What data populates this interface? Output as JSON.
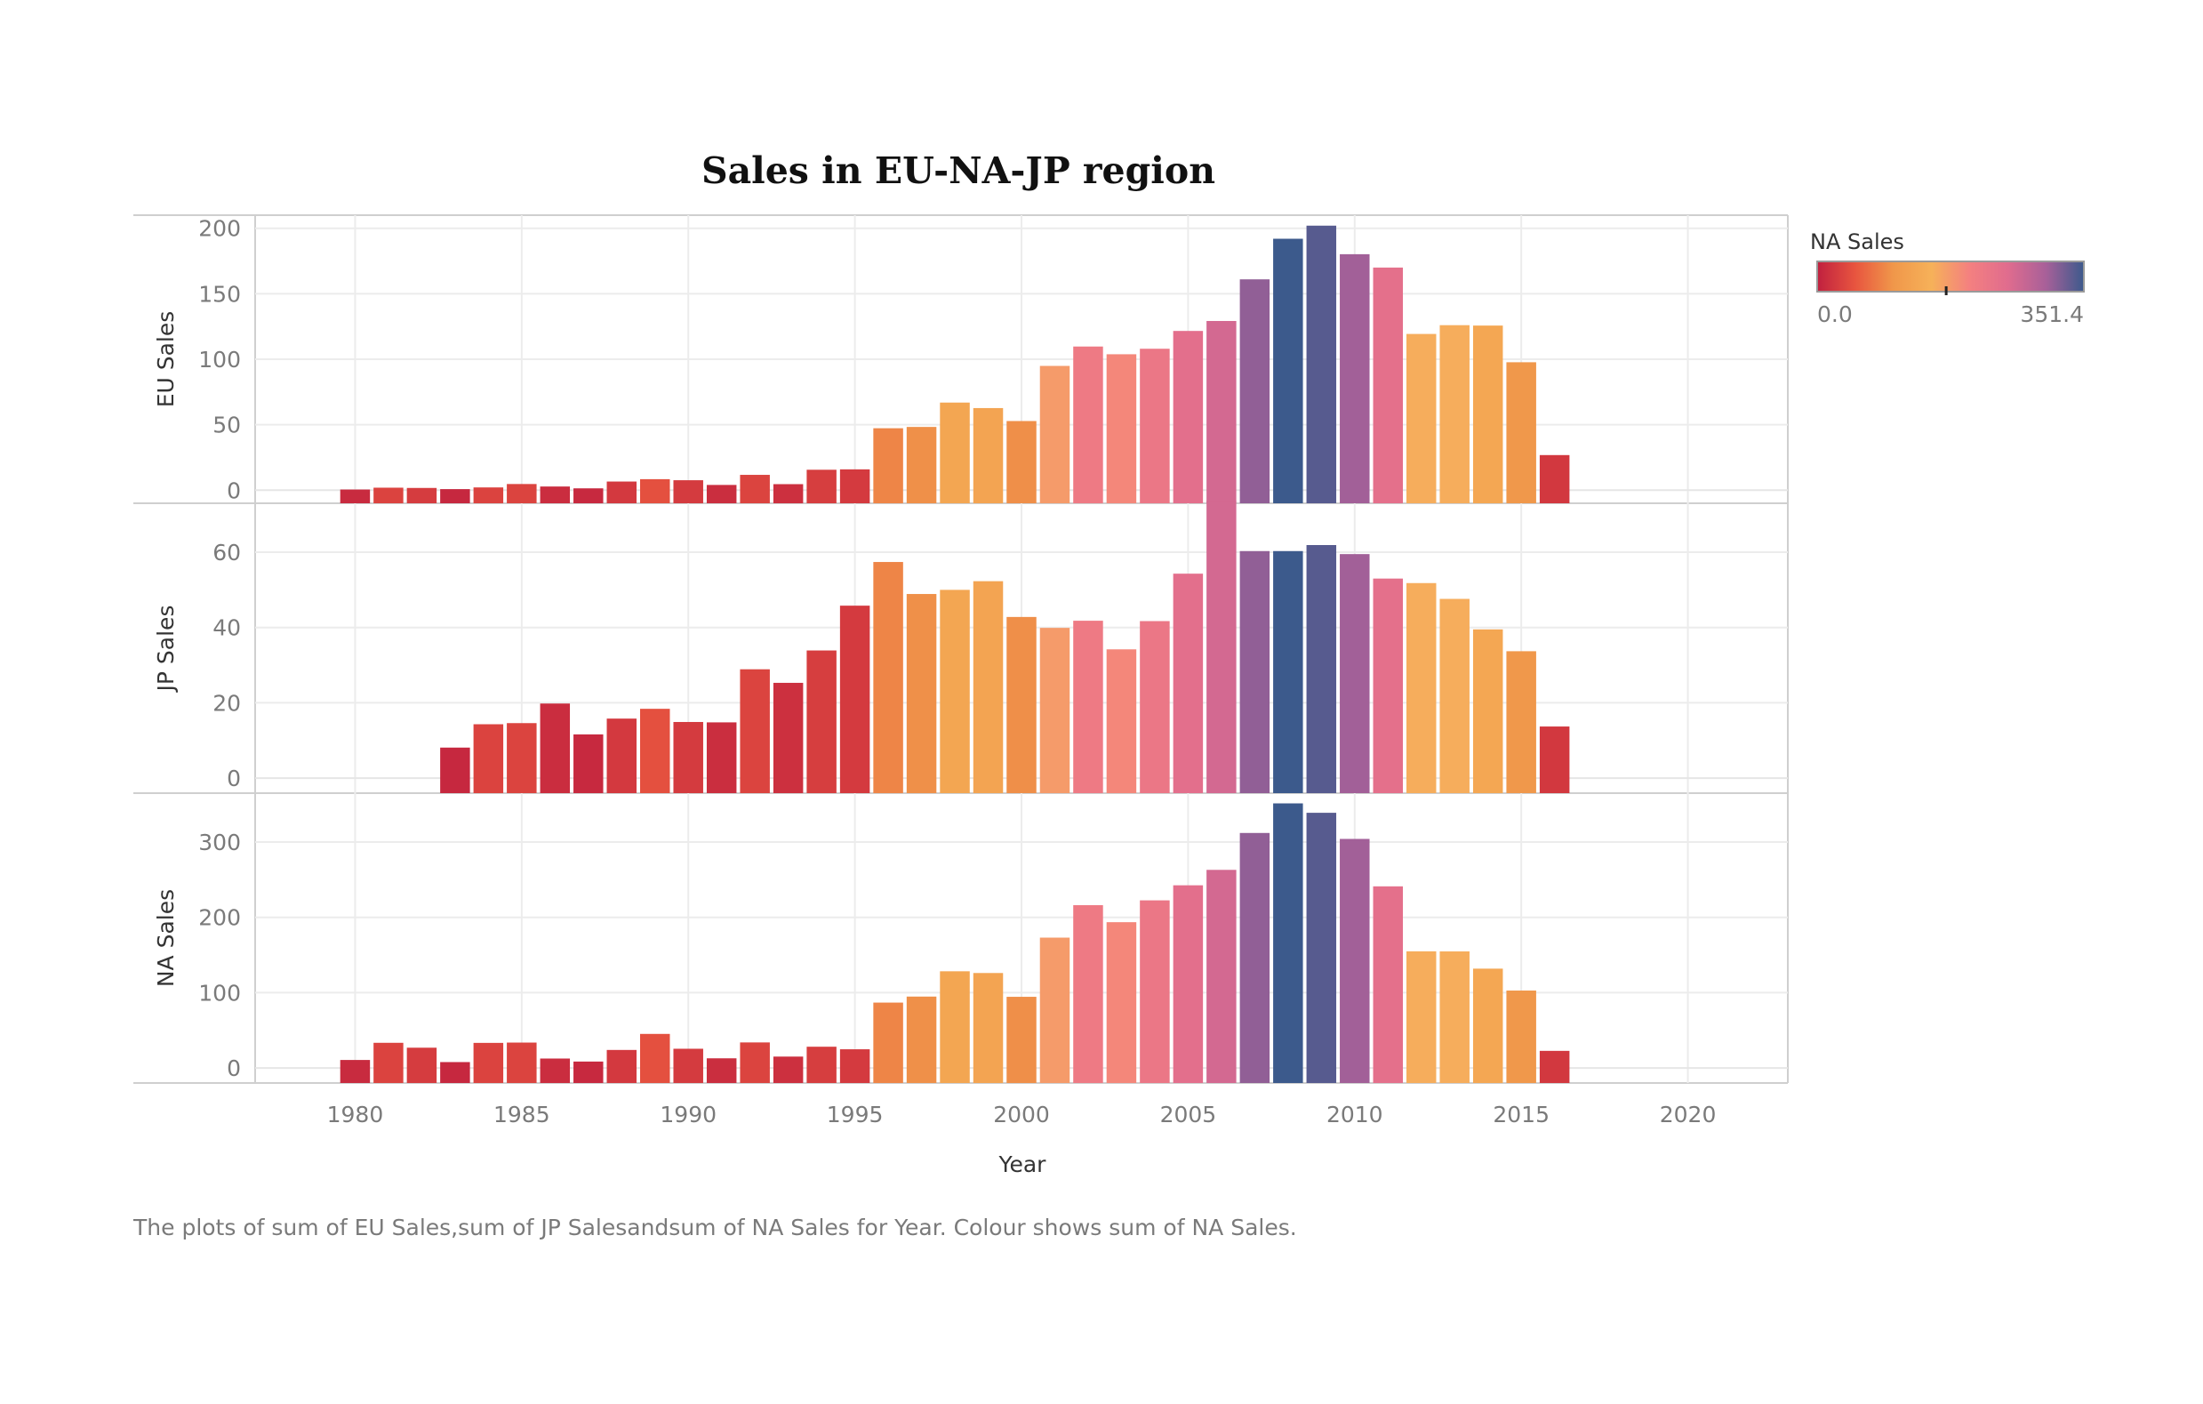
{
  "chart_data": {
    "type": "bar",
    "title": "Sales in EU-NA-JP region",
    "caption": "The plots of sum of EU Sales,sum of JP Salesandsum of NA Sales for Year. Colour shows sum of NA Sales.",
    "xlabel": "Year",
    "xlim": [
      1977,
      2023
    ],
    "x_ticks": [
      1980,
      1985,
      1990,
      1995,
      2000,
      2005,
      2010,
      2015,
      2020
    ],
    "grid": true,
    "legend": {
      "title": "NA Sales",
      "placement": "top-right",
      "min_label": "0.0",
      "max_label": "351.4",
      "min": 0,
      "max": 351.4,
      "marker_value": 170,
      "color_stops": [
        "#c0203f",
        "#e8553f",
        "#f0974a",
        "#f6b159",
        "#f48080",
        "#e06c8e",
        "#a86099",
        "#3c5a8c"
      ]
    },
    "years": [
      1980,
      1981,
      1982,
      1983,
      1984,
      1985,
      1986,
      1987,
      1988,
      1989,
      1990,
      1991,
      1992,
      1993,
      1994,
      1995,
      1996,
      1997,
      1998,
      1999,
      2000,
      2001,
      2002,
      2003,
      2004,
      2005,
      2006,
      2007,
      2008,
      2009,
      2010,
      2011,
      2012,
      2013,
      2014,
      2015,
      2016
    ],
    "panels": [
      {
        "ylabel": "EU Sales",
        "ylim": [
          -10,
          210
        ],
        "y_ticks": [
          0,
          50,
          100,
          150,
          200
        ],
        "values": [
          0.5,
          1.9,
          1.7,
          0.8,
          2.1,
          4.7,
          2.8,
          1.4,
          6.6,
          8.4,
          7.6,
          4.0,
          11.7,
          4.6,
          15.6,
          15.9,
          47.3,
          48.3,
          66.9,
          62.7,
          52.8,
          94.9,
          109.7,
          103.8,
          108.0,
          121.6,
          129.2,
          161.0,
          192.0,
          202.0,
          180.2,
          170.0,
          119.3,
          126.0,
          125.7,
          97.7,
          26.8
        ]
      },
      {
        "ylabel": "JP Sales",
        "ylim": [
          -4,
          73
        ],
        "y_ticks": [
          0,
          20,
          40,
          60
        ],
        "values": [
          0,
          0,
          0,
          8.1,
          14.3,
          14.6,
          19.8,
          11.6,
          15.8,
          18.4,
          14.9,
          14.8,
          28.9,
          25.3,
          33.9,
          45.8,
          57.4,
          48.9,
          50.0,
          52.3,
          42.8,
          39.9,
          41.8,
          34.2,
          41.7,
          54.3,
          73.7,
          60.3,
          60.3,
          61.9,
          59.5,
          53.0,
          51.8,
          47.6,
          39.5,
          33.7,
          13.7
        ]
      },
      {
        "ylabel": "NA Sales",
        "ylim": [
          -20,
          365
        ],
        "y_ticks": [
          0,
          100,
          200,
          300
        ],
        "values": [
          10.6,
          33.4,
          26.9,
          7.8,
          33.3,
          33.7,
          12.5,
          8.5,
          23.9,
          45.2,
          25.5,
          12.8,
          33.9,
          15.1,
          28.2,
          24.8,
          86.8,
          94.8,
          128.4,
          126.1,
          94.5,
          173.1,
          216.2,
          193.6,
          222.6,
          242.6,
          263.1,
          312.1,
          351.4,
          338.9,
          304.2,
          241.2,
          154.9,
          154.8,
          131.9,
          102.8,
          22.7
        ]
      }
    ]
  }
}
